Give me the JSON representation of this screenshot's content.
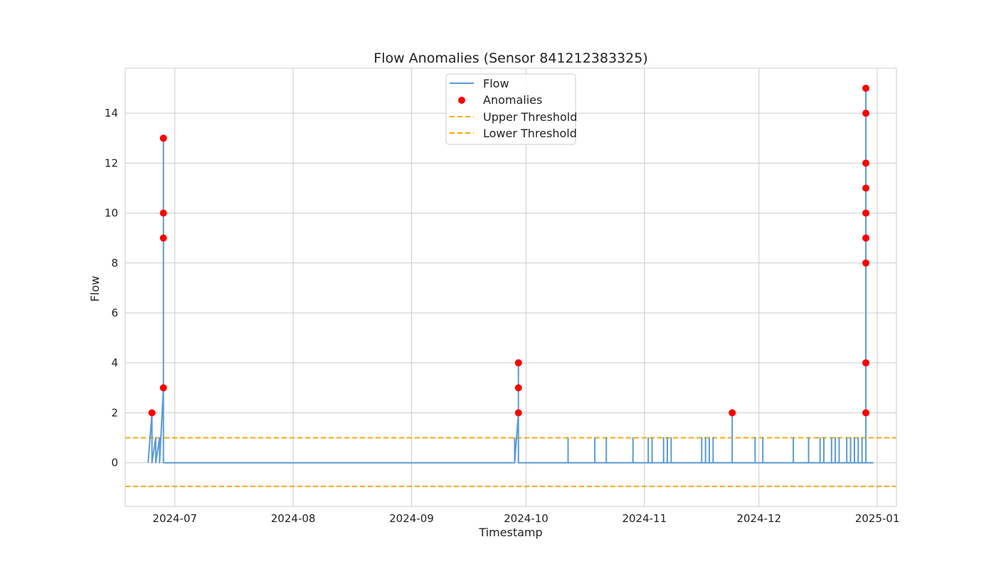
{
  "chart_data": {
    "type": "line",
    "title": "Flow Anomalies (Sensor 841212383325)",
    "xlabel": "Timestamp",
    "ylabel": "Flow",
    "xlim": [
      "2024-06-18",
      "2025-01-06"
    ],
    "ylim": [
      -1.75,
      15.8
    ],
    "x_ticks": [
      "2024-07",
      "2024-08",
      "2024-09",
      "2024-10",
      "2024-11",
      "2024-12",
      "2025-01"
    ],
    "y_ticks": [
      0,
      2,
      4,
      6,
      8,
      10,
      12,
      14
    ],
    "grid": true,
    "legend_position": "upper center",
    "colors": {
      "flow": "#5b9bd5",
      "anomaly": "#ff0000",
      "threshold": "#ffa500",
      "grid": "#cccccc"
    },
    "series": [
      {
        "name": "Flow",
        "kind": "line",
        "points": [
          [
            "2024-06-24",
            0
          ],
          [
            "2024-06-25",
            2
          ],
          [
            "2024-06-25",
            0
          ],
          [
            "2024-06-25",
            1
          ],
          [
            "2024-06-25",
            0
          ],
          [
            "2024-06-26",
            1
          ],
          [
            "2024-06-26",
            0
          ],
          [
            "2024-06-27",
            1
          ],
          [
            "2024-06-27",
            0
          ],
          [
            "2024-06-28",
            3
          ],
          [
            "2024-06-28",
            9
          ],
          [
            "2024-06-28",
            10
          ],
          [
            "2024-06-28",
            13
          ],
          [
            "2024-06-28",
            0
          ],
          [
            "2024-09-28",
            0
          ],
          [
            "2024-09-28",
            1
          ],
          [
            "2024-09-28",
            0
          ],
          [
            "2024-09-29",
            2
          ],
          [
            "2024-09-29",
            3
          ],
          [
            "2024-09-29",
            4
          ],
          [
            "2024-09-29",
            3
          ],
          [
            "2024-09-29",
            2
          ],
          [
            "2024-09-29",
            0
          ],
          [
            "2024-10-12",
            0
          ],
          [
            "2024-10-12",
            1
          ],
          [
            "2024-10-12",
            0
          ],
          [
            "2024-10-19",
            0
          ],
          [
            "2024-10-19",
            1
          ],
          [
            "2024-10-19",
            0
          ],
          [
            "2024-10-22",
            0
          ],
          [
            "2024-10-22",
            1
          ],
          [
            "2024-10-22",
            0
          ],
          [
            "2024-10-29",
            0
          ],
          [
            "2024-10-29",
            1
          ],
          [
            "2024-10-29",
            0
          ],
          [
            "2024-11-02",
            0
          ],
          [
            "2024-11-02",
            1
          ],
          [
            "2024-11-02",
            0
          ],
          [
            "2024-11-03",
            0
          ],
          [
            "2024-11-03",
            1
          ],
          [
            "2024-11-03",
            0
          ],
          [
            "2024-11-06",
            0
          ],
          [
            "2024-11-06",
            1
          ],
          [
            "2024-11-06",
            0
          ],
          [
            "2024-11-07",
            0
          ],
          [
            "2024-11-07",
            1
          ],
          [
            "2024-11-07",
            0
          ],
          [
            "2024-11-08",
            0
          ],
          [
            "2024-11-08",
            1
          ],
          [
            "2024-11-08",
            0
          ],
          [
            "2024-11-16",
            0
          ],
          [
            "2024-11-16",
            1
          ],
          [
            "2024-11-16",
            0
          ],
          [
            "2024-11-17",
            0
          ],
          [
            "2024-11-17",
            1
          ],
          [
            "2024-11-17",
            0
          ],
          [
            "2024-11-18",
            0
          ],
          [
            "2024-11-18",
            1
          ],
          [
            "2024-11-18",
            0
          ],
          [
            "2024-11-19",
            0
          ],
          [
            "2024-11-19",
            1
          ],
          [
            "2024-11-19",
            0
          ],
          [
            "2024-11-24",
            0
          ],
          [
            "2024-11-24",
            2
          ],
          [
            "2024-11-24",
            0
          ],
          [
            "2024-11-30",
            0
          ],
          [
            "2024-11-30",
            1
          ],
          [
            "2024-11-30",
            0
          ],
          [
            "2024-12-02",
            0
          ],
          [
            "2024-12-02",
            1
          ],
          [
            "2024-12-02",
            0
          ],
          [
            "2024-12-10",
            0
          ],
          [
            "2024-12-10",
            1
          ],
          [
            "2024-12-10",
            0
          ],
          [
            "2024-12-14",
            0
          ],
          [
            "2024-12-14",
            1
          ],
          [
            "2024-12-14",
            0
          ],
          [
            "2024-12-17",
            0
          ],
          [
            "2024-12-17",
            1
          ],
          [
            "2024-12-17",
            0
          ],
          [
            "2024-12-18",
            0
          ],
          [
            "2024-12-18",
            1
          ],
          [
            "2024-12-18",
            0
          ],
          [
            "2024-12-20",
            0
          ],
          [
            "2024-12-20",
            1
          ],
          [
            "2024-12-20",
            0
          ],
          [
            "2024-12-21",
            0
          ],
          [
            "2024-12-21",
            1
          ],
          [
            "2024-12-21",
            0
          ],
          [
            "2024-12-22",
            0
          ],
          [
            "2024-12-22",
            1
          ],
          [
            "2024-12-22",
            0
          ],
          [
            "2024-12-24",
            0
          ],
          [
            "2024-12-24",
            1
          ],
          [
            "2024-12-24",
            0
          ],
          [
            "2024-12-25",
            0
          ],
          [
            "2024-12-25",
            1
          ],
          [
            "2024-12-25",
            0
          ],
          [
            "2024-12-26",
            0
          ],
          [
            "2024-12-26",
            1
          ],
          [
            "2024-12-26",
            0
          ],
          [
            "2024-12-27",
            0
          ],
          [
            "2024-12-27",
            1
          ],
          [
            "2024-12-27",
            0
          ],
          [
            "2024-12-28",
            0
          ],
          [
            "2024-12-28",
            1
          ],
          [
            "2024-12-28",
            0
          ],
          [
            "2024-12-29",
            0
          ],
          [
            "2024-12-29",
            2
          ],
          [
            "2024-12-29",
            4
          ],
          [
            "2024-12-29",
            8
          ],
          [
            "2024-12-29",
            9
          ],
          [
            "2024-12-29",
            10
          ],
          [
            "2024-12-29",
            11
          ],
          [
            "2024-12-29",
            12
          ],
          [
            "2024-12-29",
            14
          ],
          [
            "2024-12-29",
            15
          ],
          [
            "2024-12-29",
            0
          ],
          [
            "2024-12-31",
            0
          ]
        ]
      },
      {
        "name": "Anomalies",
        "kind": "scatter",
        "points": [
          [
            "2024-06-25",
            2
          ],
          [
            "2024-06-28",
            3
          ],
          [
            "2024-06-28",
            9
          ],
          [
            "2024-06-28",
            10
          ],
          [
            "2024-06-28",
            13
          ],
          [
            "2024-09-29",
            2
          ],
          [
            "2024-09-29",
            3
          ],
          [
            "2024-09-29",
            4
          ],
          [
            "2024-11-24",
            2
          ],
          [
            "2024-12-29",
            2
          ],
          [
            "2024-12-29",
            4
          ],
          [
            "2024-12-29",
            8
          ],
          [
            "2024-12-29",
            9
          ],
          [
            "2024-12-29",
            10
          ],
          [
            "2024-12-29",
            11
          ],
          [
            "2024-12-29",
            12
          ],
          [
            "2024-12-29",
            14
          ],
          [
            "2024-12-29",
            15
          ]
        ]
      },
      {
        "name": "Upper Threshold",
        "kind": "hline",
        "value": 1.0
      },
      {
        "name": "Lower Threshold",
        "kind": "hline",
        "value": -0.95
      }
    ]
  }
}
